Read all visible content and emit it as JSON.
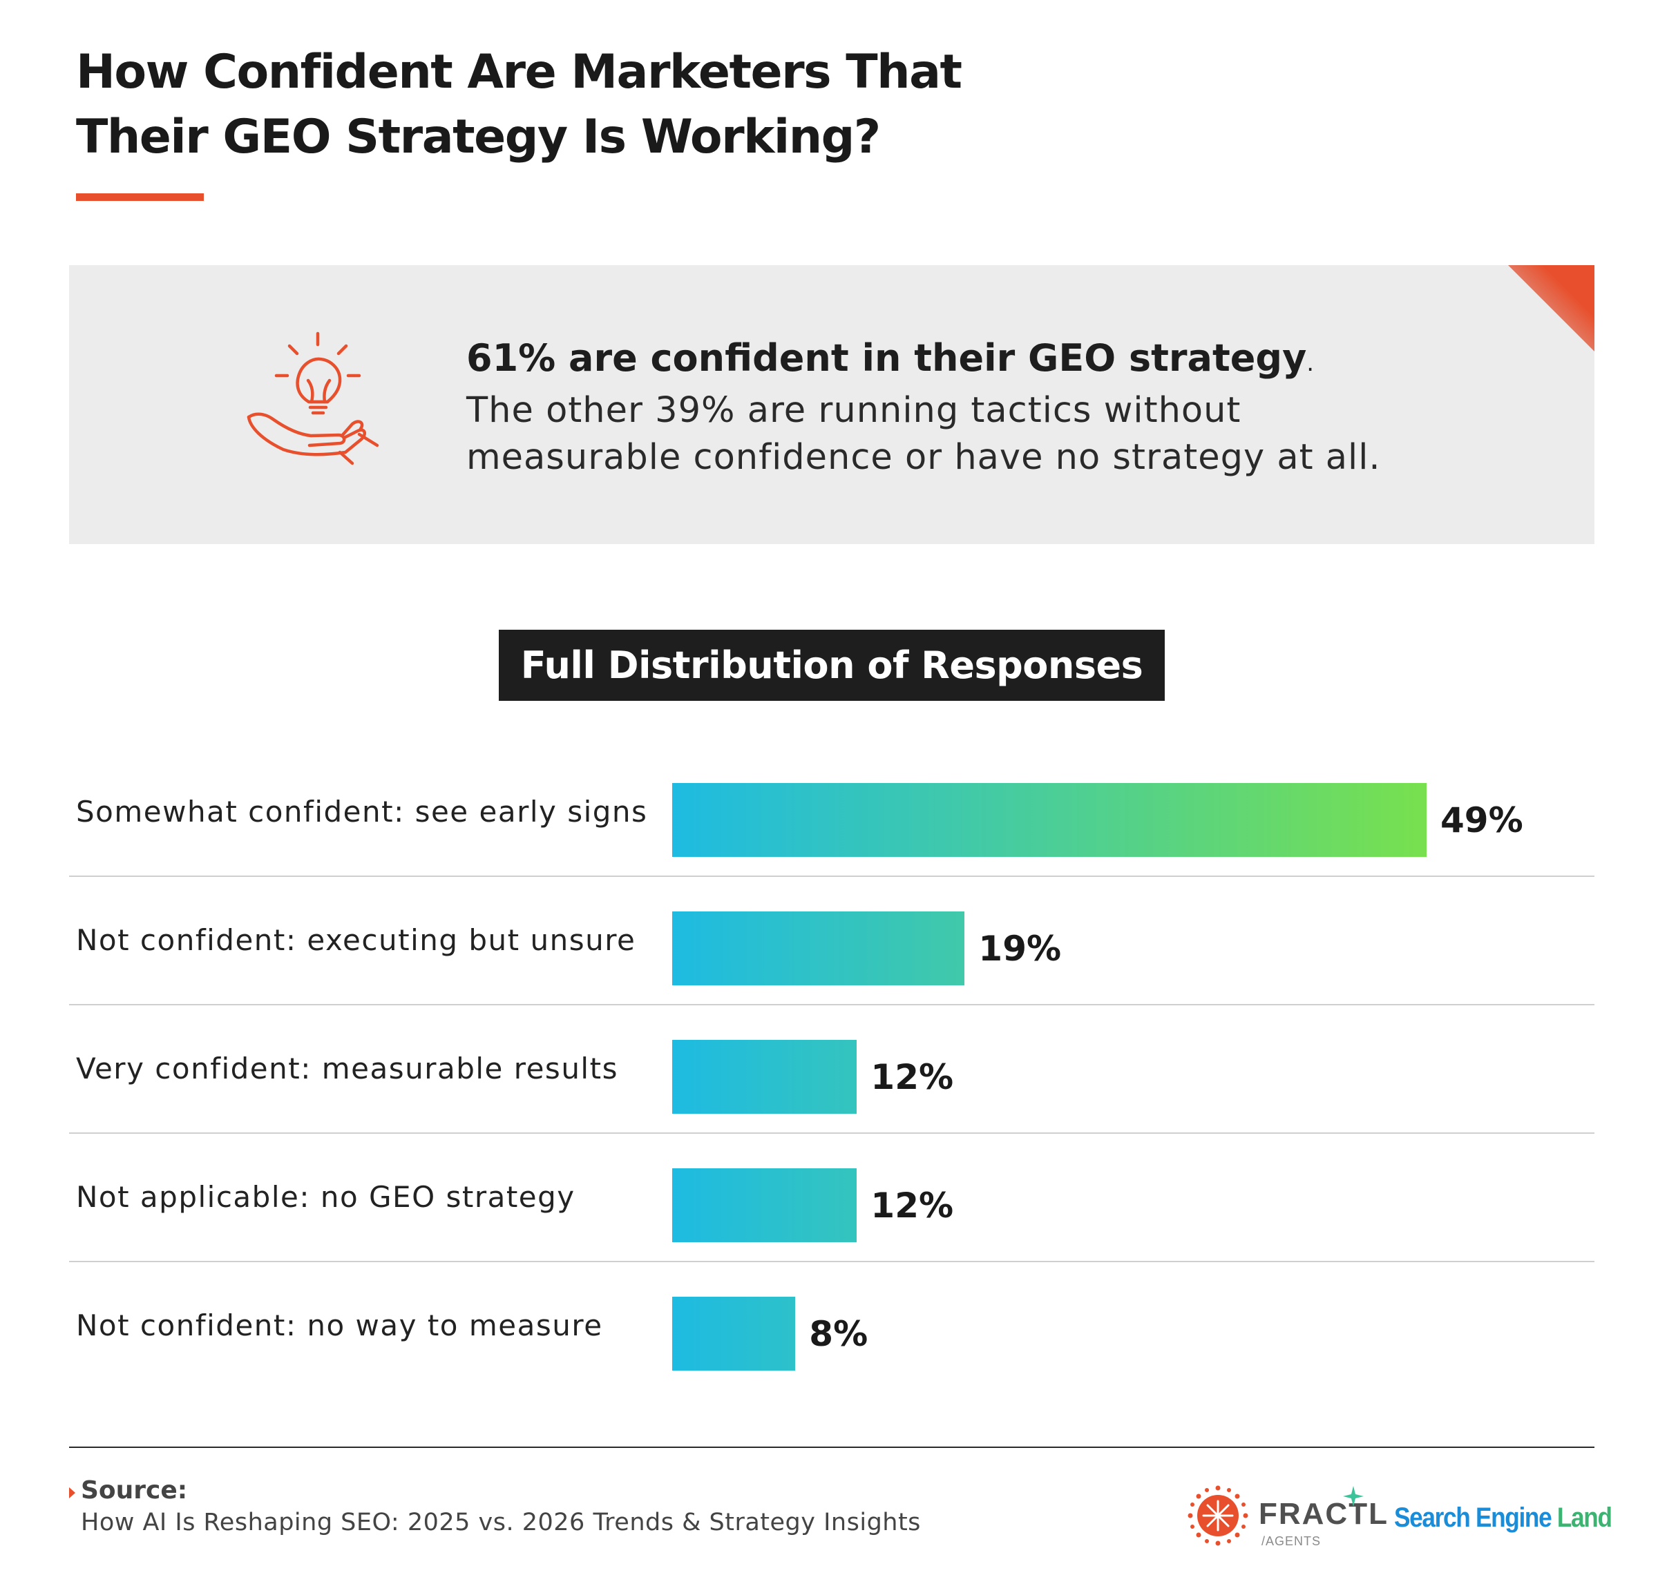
{
  "header": {
    "title_line1": "How Confident Are Marketers That",
    "title_line2": "Their GEO Strategy Is Working?"
  },
  "callout": {
    "icon": "lightbulb-in-hand-icon",
    "headline": "61% are confident in their GEO strategy",
    "headline_suffix": ".",
    "body_line1": "The other 39% are running tactics without",
    "body_line2": "measurable confidence or have no strategy at all."
  },
  "chart_data": {
    "type": "bar",
    "orientation": "horizontal",
    "title": "Full Distribution of Responses",
    "categories": [
      "Somewhat confident: see early signs",
      "Not confident: executing but unsure",
      "Very confident: measurable results",
      "Not applicable: no GEO strategy",
      "Not confident: no way to measure"
    ],
    "values": [
      49,
      19,
      12,
      12,
      8
    ],
    "value_labels": [
      "49%",
      "19%",
      "12%",
      "12%",
      "8%"
    ],
    "unit": "%",
    "xlim": [
      0,
      100
    ],
    "grid": false
  },
  "footer": {
    "source_label": "Source:",
    "source_text": "How AI Is Reshaping SEO: 2025 vs. 2026 Trends & Strategy Insights",
    "logo1_word": "FRACTL",
    "logo1_sub": "/AGENTS",
    "logo2_part1": "Search Engine",
    "logo2_part2": " Land"
  },
  "colors": {
    "accent": "#e8502d",
    "bar_start": "#1ebbe2",
    "bar_end": "#78e04e",
    "callout_bg": "#ececec"
  }
}
